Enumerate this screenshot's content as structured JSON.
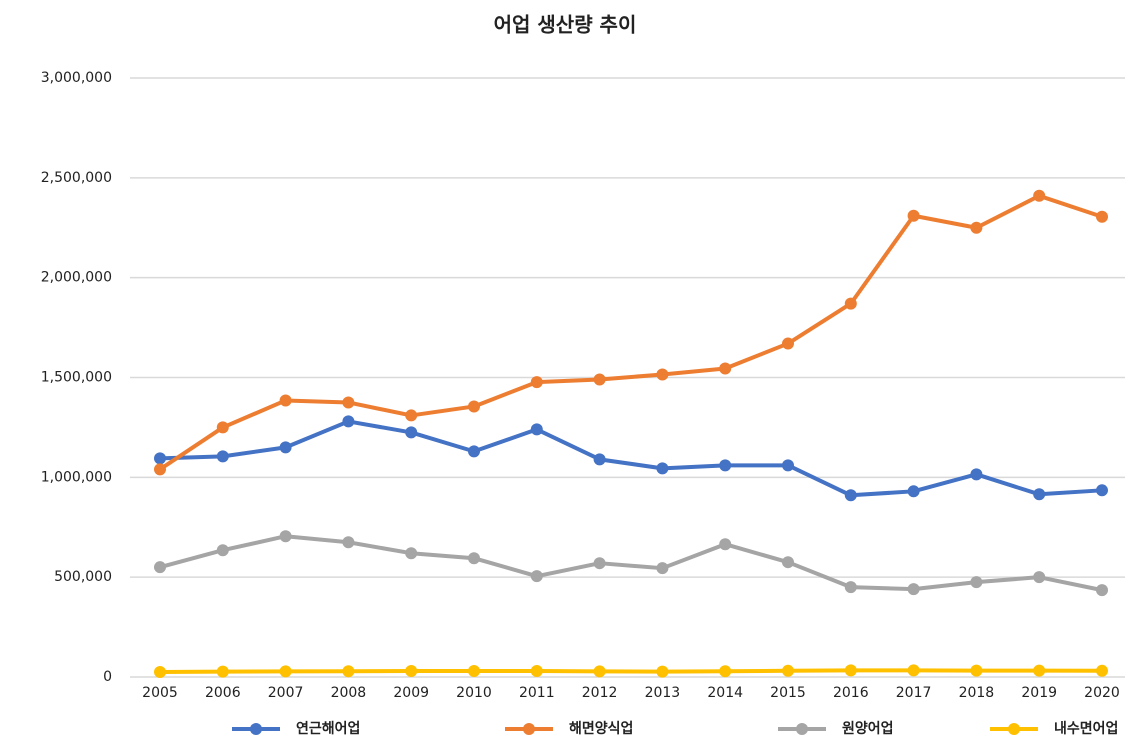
{
  "chart_data": {
    "type": "line",
    "title": "어업 생산량 추이",
    "categories": [
      "2005",
      "2006",
      "2007",
      "2008",
      "2009",
      "2010",
      "2011",
      "2012",
      "2013",
      "2014",
      "2015",
      "2016",
      "2017",
      "2018",
      "2019",
      "2020"
    ],
    "series": [
      {
        "name": "연근해어업",
        "color": "#4472c4",
        "values": [
          1095000,
          1105000,
          1150000,
          1280000,
          1225000,
          1130000,
          1240000,
          1090000,
          1045000,
          1060000,
          1060000,
          910000,
          930000,
          1015000,
          915000,
          935000
        ]
      },
      {
        "name": "해면양식업",
        "color": "#ed7d31",
        "values": [
          1040000,
          1250000,
          1385000,
          1375000,
          1310000,
          1355000,
          1477000,
          1490000,
          1515000,
          1545000,
          1670000,
          1870000,
          2310000,
          2250000,
          2410000,
          2305000
        ]
      },
      {
        "name": "원양어업",
        "color": "#a5a5a5",
        "values": [
          550000,
          635000,
          705000,
          675000,
          620000,
          595000,
          505000,
          570000,
          545000,
          665000,
          575000,
          450000,
          440000,
          475000,
          500000,
          435000
        ]
      },
      {
        "name": "내수면어업",
        "color": "#ffc000",
        "values": [
          25000,
          27000,
          28000,
          29000,
          30000,
          30000,
          30000,
          28000,
          27000,
          29000,
          31000,
          33000,
          33000,
          32000,
          32000,
          31000
        ]
      }
    ],
    "ylim": [
      0,
      3000000
    ],
    "yticks": [
      0,
      {
        "value": 500000,
        "label": "500,000"
      },
      {
        "value": 1000000,
        "label": "1,000,000"
      },
      {
        "value": 1500000,
        "label": "1,500,000"
      },
      {
        "value": 2000000,
        "label": "2,000,000"
      },
      {
        "value": 2500000,
        "label": "2,500,000"
      },
      {
        "value": 3000000,
        "label": "3,000,000"
      }
    ],
    "grid": true,
    "legend": "bottom"
  }
}
